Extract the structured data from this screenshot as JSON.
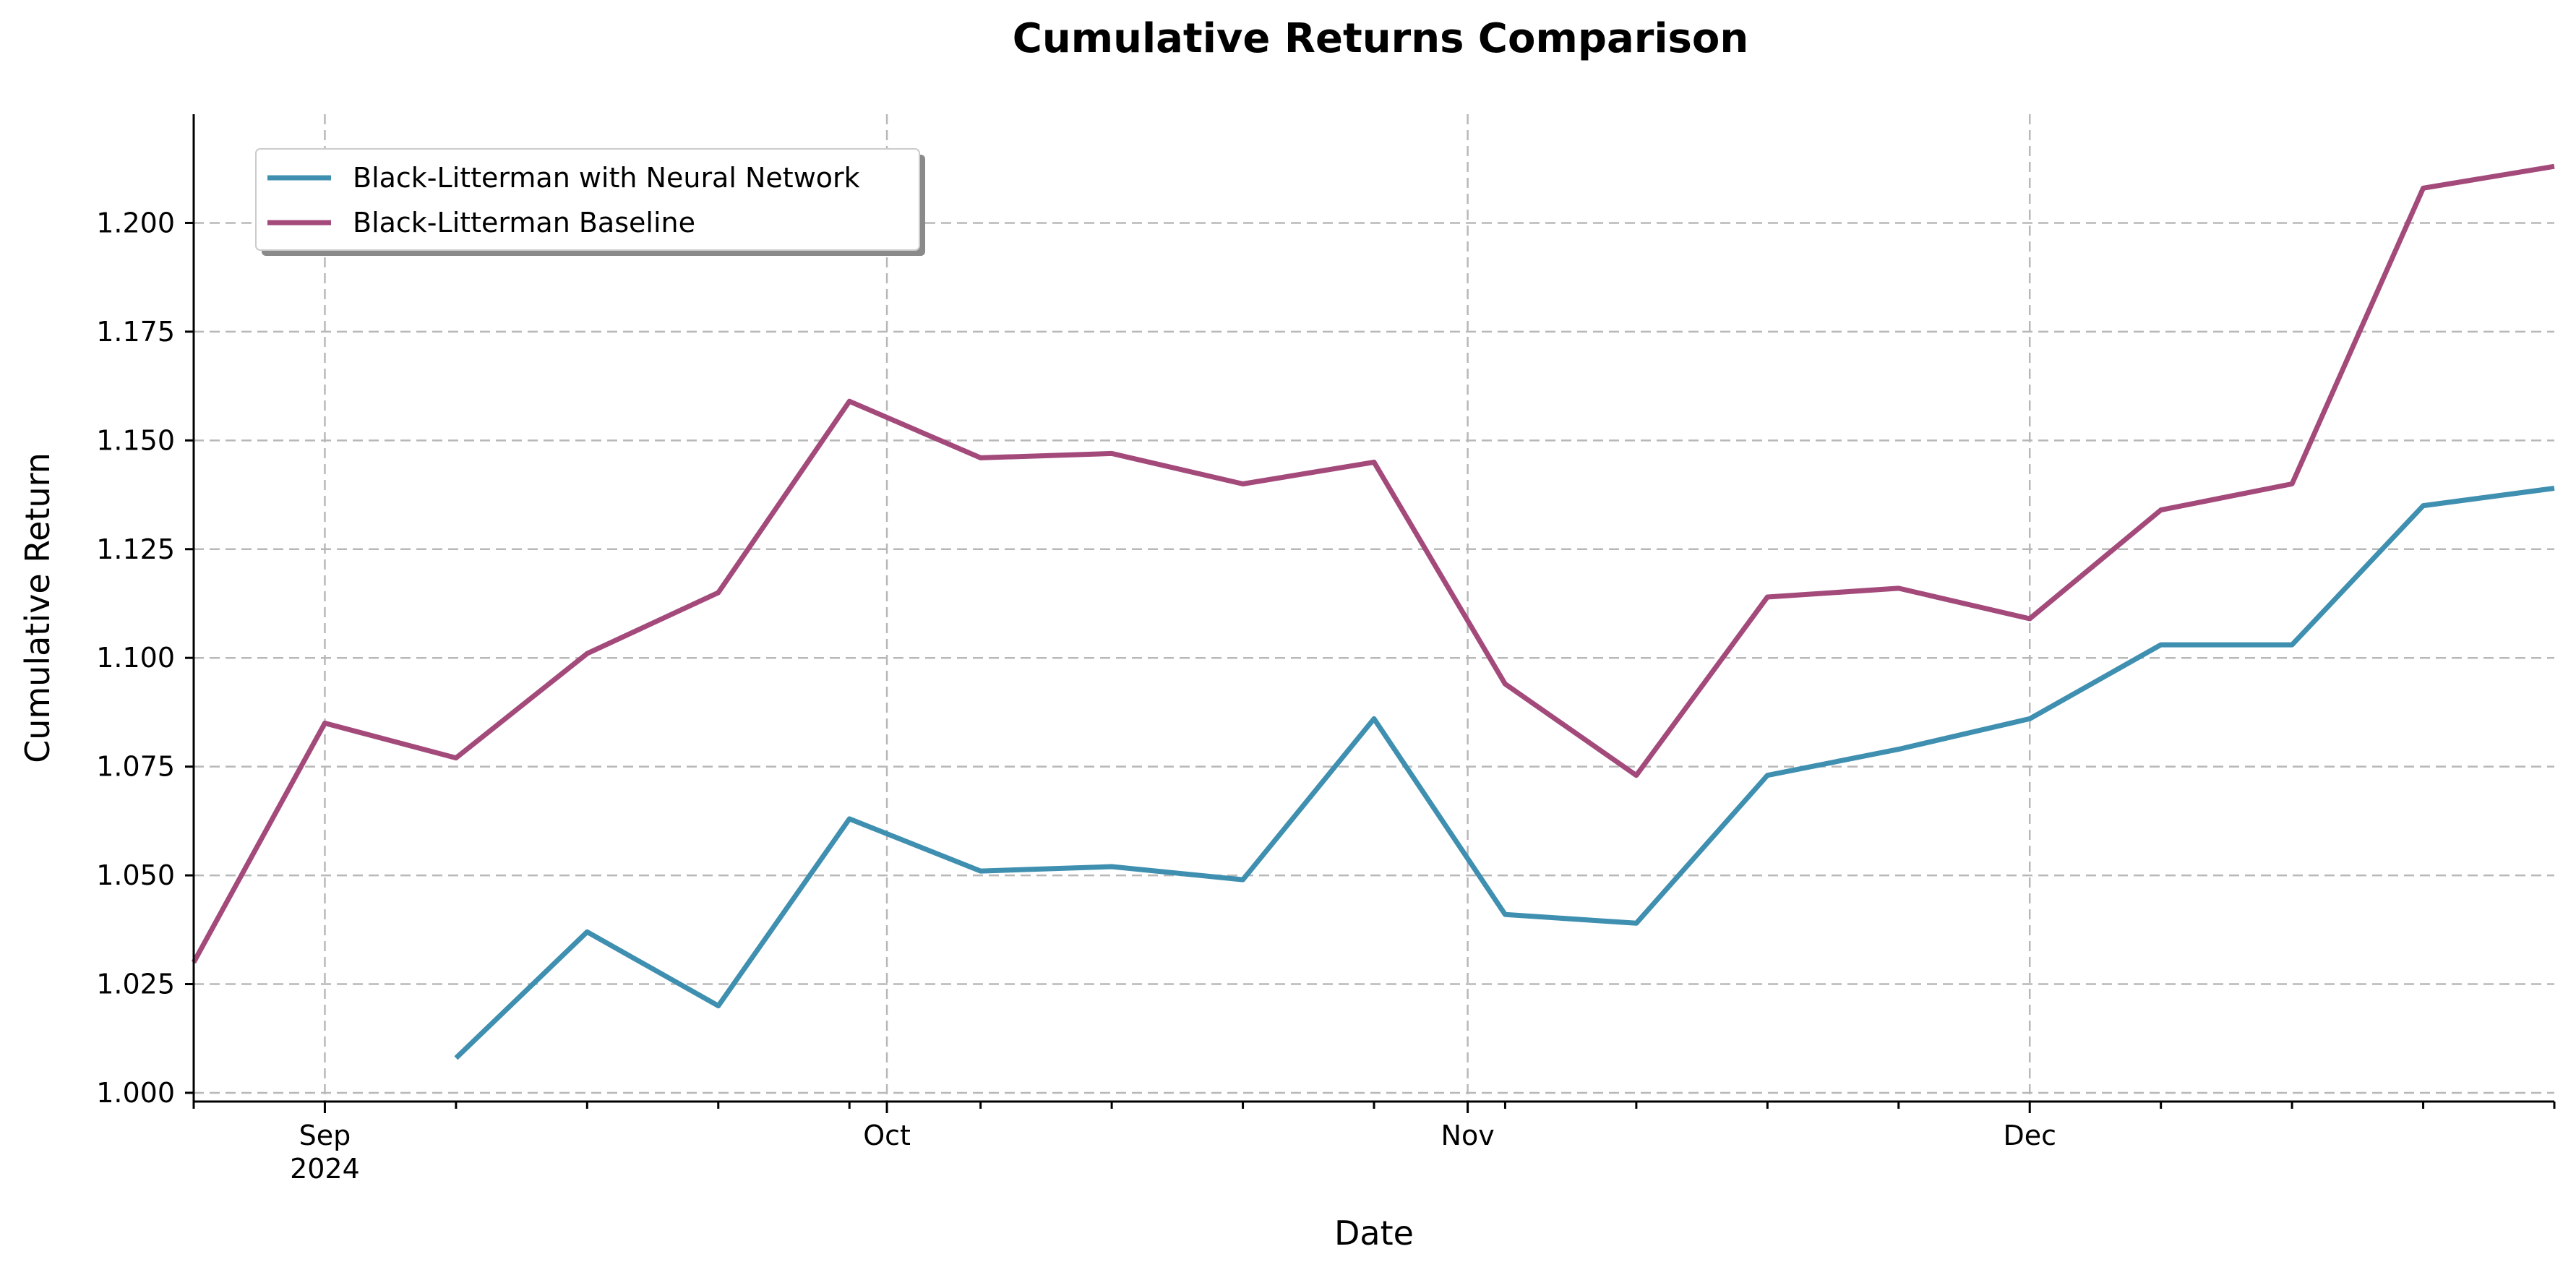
{
  "chart_data": {
    "type": "line",
    "title": "Cumulative Returns Comparison",
    "xlabel": "Date",
    "ylabel": "Cumulative Return",
    "grid": true,
    "legend_position": "top-left",
    "x": [
      "2024-08-25",
      "2024-09-01",
      "2024-09-08",
      "2024-09-15",
      "2024-09-22",
      "2024-09-29",
      "2024-10-06",
      "2024-10-13",
      "2024-10-20",
      "2024-10-27",
      "2024-11-03",
      "2024-11-10",
      "2024-11-17",
      "2024-11-24",
      "2024-12-01",
      "2024-12-08",
      "2024-12-15",
      "2024-12-22",
      "2024-12-29"
    ],
    "xlim": [
      "2024-08-25",
      "2024-12-29"
    ],
    "ylim": [
      0.998,
      1.225
    ],
    "series": [
      {
        "name": "Black-Litterman with Neural Network",
        "color": "#3f8fb0",
        "values": [
          null,
          null,
          1.008,
          1.037,
          1.02,
          1.063,
          1.051,
          1.052,
          1.049,
          1.086,
          1.041,
          1.039,
          1.073,
          1.079,
          1.086,
          1.103,
          1.103,
          1.135,
          1.139
        ]
      },
      {
        "name": "Black-Litterman Baseline",
        "color": "#a34a7b",
        "values": [
          1.03,
          1.085,
          1.077,
          1.101,
          1.115,
          1.159,
          1.146,
          1.147,
          1.14,
          1.145,
          1.094,
          1.073,
          1.114,
          1.116,
          1.109,
          1.134,
          1.14,
          1.208,
          1.213
        ]
      }
    ],
    "yticks": [
      1.0,
      1.025,
      1.05,
      1.075,
      1.1,
      1.125,
      1.15,
      1.175,
      1.2
    ],
    "ytick_labels": [
      "1.000",
      "1.025",
      "1.050",
      "1.075",
      "1.100",
      "1.125",
      "1.150",
      "1.175",
      "1.200"
    ],
    "xticks_major": [
      {
        "date": "2024-09-01",
        "label": "Sep",
        "sublabel": "2024"
      },
      {
        "date": "2024-10-01",
        "label": "Oct",
        "sublabel": ""
      },
      {
        "date": "2024-11-01",
        "label": "Nov",
        "sublabel": ""
      },
      {
        "date": "2024-12-01",
        "label": "Dec",
        "sublabel": ""
      }
    ],
    "xticks_minor": [
      "2024-08-25",
      "2024-09-08",
      "2024-09-15",
      "2024-09-22",
      "2024-09-29",
      "2024-10-06",
      "2024-10-13",
      "2024-10-20",
      "2024-10-27",
      "2024-11-03",
      "2024-11-10",
      "2024-11-17",
      "2024-11-24",
      "2024-12-08",
      "2024-12-15",
      "2024-12-22",
      "2024-12-29"
    ]
  }
}
